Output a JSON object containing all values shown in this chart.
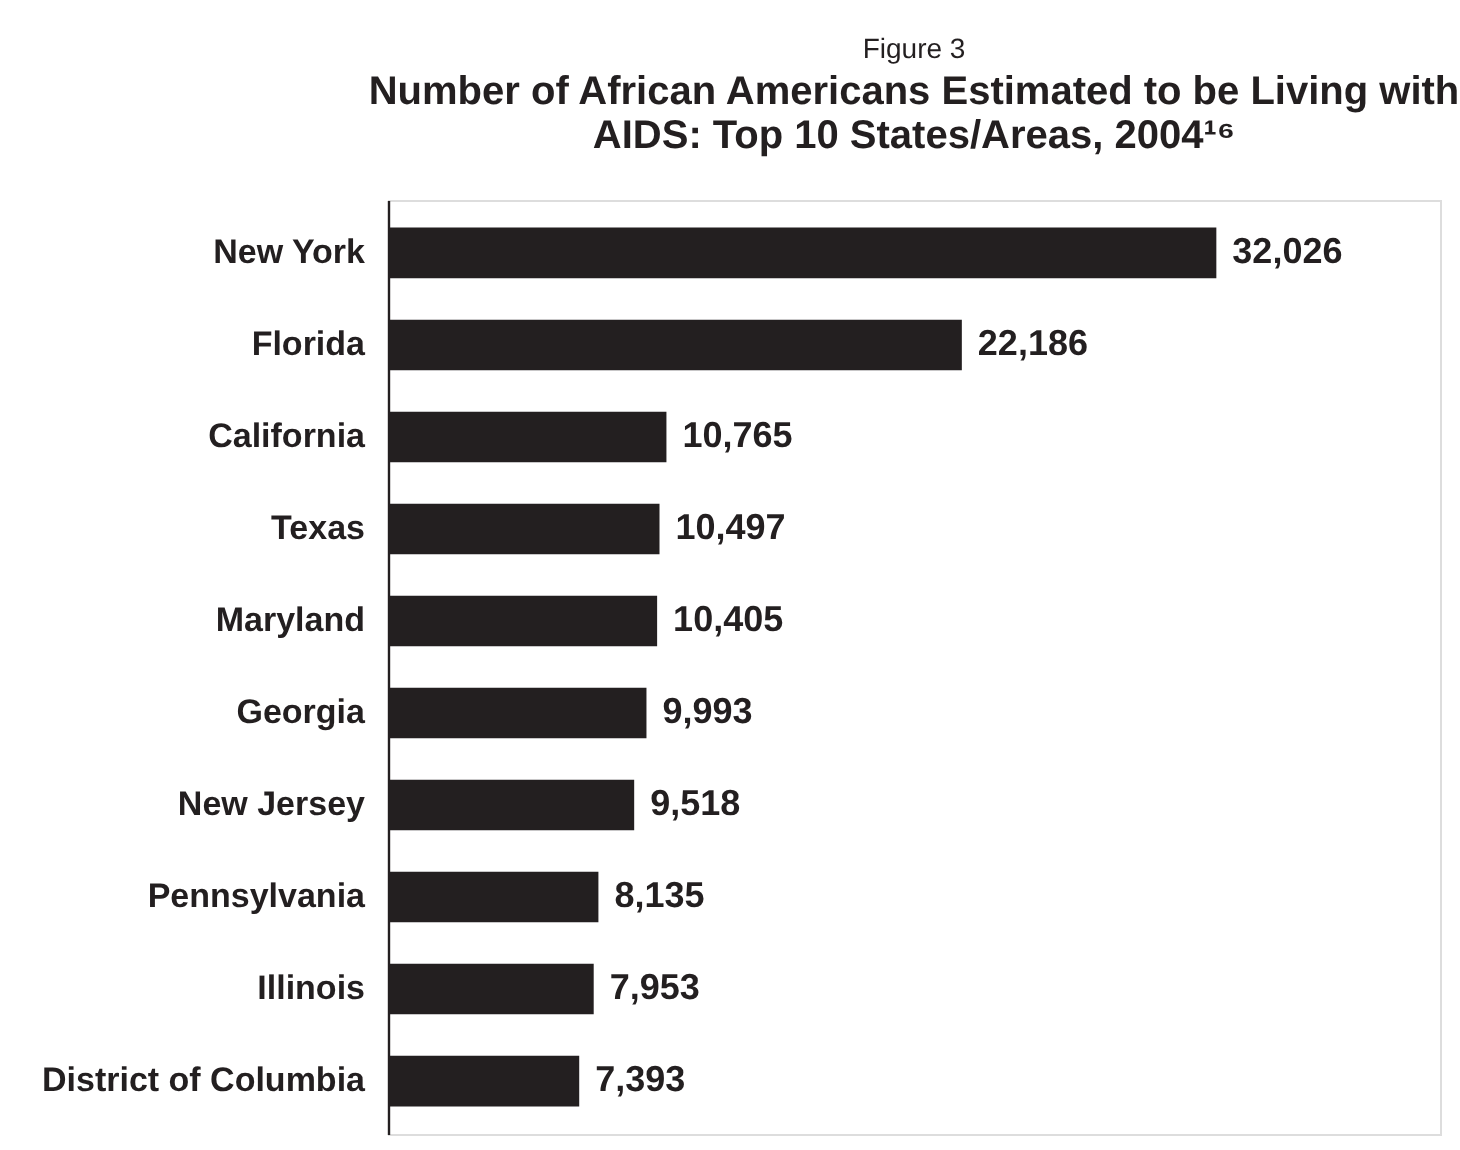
{
  "chart_data": {
    "type": "bar",
    "orientation": "horizontal",
    "title": "Number of African Americans Estimated to be Living with AIDS: Top 10 States/Areas, 2004¹⁶",
    "annotations": [
      "Figure 3"
    ],
    "categories": [
      "New York",
      "Florida",
      "California",
      "Texas",
      "Maryland",
      "Georgia",
      "New Jersey",
      "Pennsylvania",
      "Illinois",
      "District of Columbia"
    ],
    "values": [
      32026,
      22186,
      10765,
      10497,
      10405,
      9993,
      9518,
      8135,
      7953,
      7393
    ],
    "value_labels": [
      "32,026",
      "22,186",
      "10,765",
      "10,497",
      "10,405",
      "9,993",
      "9,518",
      "8,135",
      "7,953",
      "7,393"
    ],
    "color": "#231f20",
    "tick_labels": "y",
    "grid": false
  }
}
